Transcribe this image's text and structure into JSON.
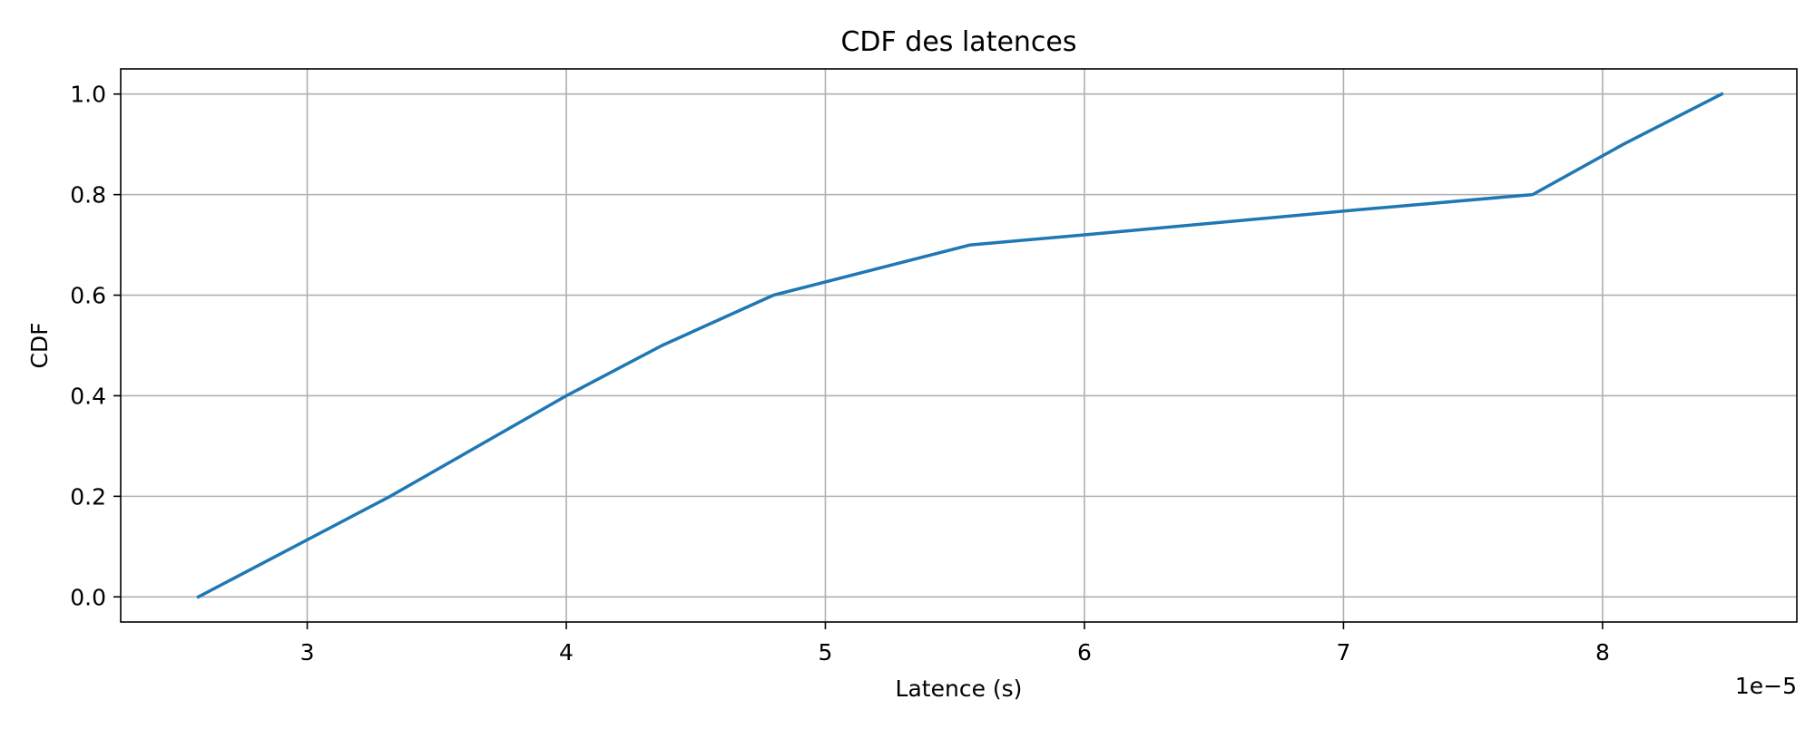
{
  "chart_data": {
    "type": "line",
    "title": "CDF des latences",
    "xlabel": "Latence (s)",
    "ylabel": "CDF",
    "x_offset_label": "1e−5",
    "xlim": [
      2.28,
      8.75
    ],
    "ylim": [
      -0.05,
      1.05
    ],
    "x_ticks": [
      3,
      4,
      5,
      6,
      7,
      8
    ],
    "x_tick_labels": [
      "3",
      "4",
      "5",
      "6",
      "7",
      "8"
    ],
    "y_ticks": [
      0.0,
      0.2,
      0.4,
      0.6,
      0.8,
      1.0
    ],
    "y_tick_labels": [
      "0.0",
      "0.2",
      "0.4",
      "0.6",
      "0.8",
      "1.0"
    ],
    "grid": true,
    "series": [
      {
        "color": "#1f77b4",
        "x": [
          2.58,
          3.32,
          4.0,
          4.37,
          4.8,
          5.56,
          6.0,
          7.06,
          7.73,
          8.08,
          8.46
        ],
        "y": [
          0.0,
          0.2,
          0.4,
          0.5,
          0.6,
          0.7,
          0.72,
          0.77,
          0.8,
          0.9,
          1.0
        ]
      }
    ]
  }
}
